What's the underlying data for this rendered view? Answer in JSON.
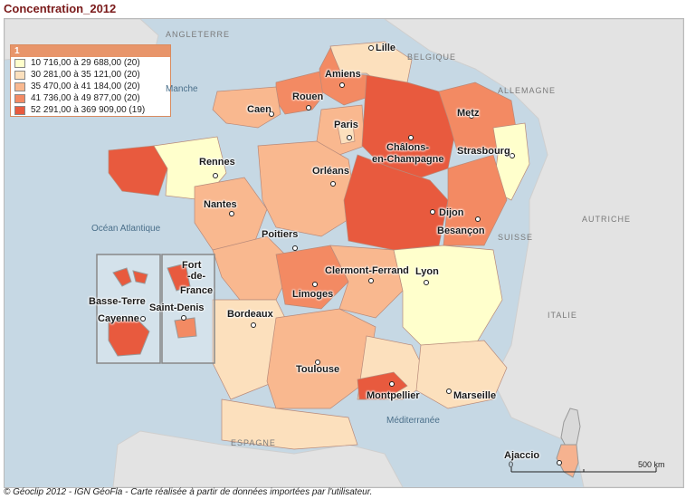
{
  "title": "Concentration_2012",
  "legend": {
    "header": "1",
    "classes": [
      {
        "label": "10 716,00 à 29 688,00 (20)",
        "color": "#ffffcc"
      },
      {
        "label": "30 281,00 à 35 121,00 (20)",
        "color": "#fce0bd"
      },
      {
        "label": "35 470,00 à 41 184,00 (20)",
        "color": "#f9b88f"
      },
      {
        "label": "41 736,00 à 49 877,00 (20)",
        "color": "#f38a63"
      },
      {
        "label": "52 291,00 à 369 909,00 (19)",
        "color": "#e85a3e"
      }
    ]
  },
  "cities": [
    "Lille",
    "Amiens",
    "Rouen",
    "Caen",
    "Paris",
    "Metz",
    "Châlons-",
    "en-Champagne",
    "Strasbourg",
    "Rennes",
    "Orléans",
    "Nantes",
    "Dijon",
    "Besançon",
    "Poitiers",
    "Clermont-Ferrand",
    "Lyon",
    "Limoges",
    "Bordeaux",
    "Toulouse",
    "Montpellier",
    "Marseille",
    "Ajaccio"
  ],
  "overseas": [
    "Basse-Terre",
    "Fort",
    "-de-",
    "France",
    "Cayenne",
    "Saint-Denis"
  ],
  "countries": [
    "ANGLETERRE",
    "BELGIQUE",
    "ALLEMAGNE",
    "SUISSE",
    "AUTRICHE",
    "ITALIE",
    "ESPAGNE"
  ],
  "seas": [
    "Manche",
    "Océan Atlantique",
    "Méditerranée"
  ],
  "scale": {
    "start": "0",
    "end": "500 km"
  },
  "footer": "© Géoclip 2012 - IGN GéoFla - Carte réalisée à partir de données importées par l'utilisateur."
}
